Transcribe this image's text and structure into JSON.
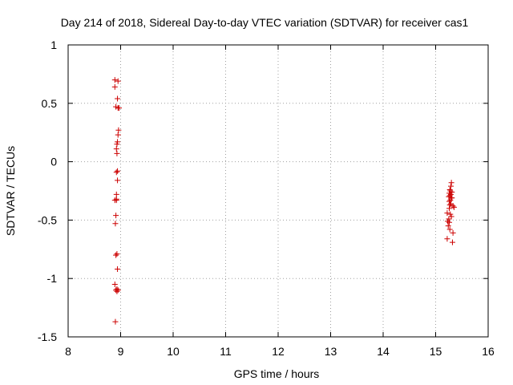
{
  "chart_data": {
    "type": "scatter",
    "title": "Day 214 of 2018, Sidereal Day-to-day VTEC variation (SDTVAR) for receiver cas1",
    "xlabel": "GPS time / hours",
    "ylabel": "SDTVAR / TECUs",
    "xlim": [
      8,
      16
    ],
    "ylim": [
      -1.5,
      1
    ],
    "xticks": [
      8,
      9,
      10,
      11,
      12,
      13,
      14,
      15,
      16
    ],
    "xtick_labels": [
      "8",
      "9",
      "10",
      "11",
      "12",
      "13",
      "14",
      "15",
      "16"
    ],
    "yticks": [
      -1.5,
      -1,
      -0.5,
      0,
      0.5,
      1
    ],
    "ytick_labels": [
      "-1.5",
      "-1",
      "-0.5",
      "0",
      "0.5",
      "1"
    ],
    "grid": true,
    "marker": "+",
    "color": "#cc0000",
    "series": [
      {
        "x": [
          8.89,
          8.95,
          8.89,
          8.94,
          8.95,
          8.97,
          8.96,
          8.95,
          8.94,
          8.93,
          8.92,
          8.93,
          8.94,
          8.92,
          8.94,
          8.92,
          8.89,
          8.92,
          8.91,
          8.9,
          8.93,
          8.91,
          8.94,
          8.89,
          8.93,
          8.95,
          8.93,
          8.9,
          8.91,
          8.91,
          8.92
        ],
        "y": [
          0.7,
          0.69,
          0.64,
          0.54,
          0.46,
          0.46,
          0.27,
          0.23,
          0.17,
          0.15,
          0.11,
          0.07,
          -0.08,
          -0.09,
          -0.16,
          -0.28,
          -0.33,
          -0.32,
          -0.46,
          -0.53,
          -0.79,
          -0.8,
          -0.92,
          -1.05,
          -1.09,
          -1.1,
          -1.11,
          -1.37,
          -1.1,
          0.47,
          -0.33
        ]
      },
      {
        "x": [
          15.3,
          15.29,
          15.27,
          15.28,
          15.31,
          15.26,
          15.29,
          15.27,
          15.25,
          15.3,
          15.28,
          15.26,
          15.33,
          15.35,
          15.27,
          15.22,
          15.28,
          15.3,
          15.25,
          15.23,
          15.26,
          15.24,
          15.27,
          15.33,
          15.22,
          15.32,
          15.29,
          15.26,
          15.31
        ],
        "y": [
          -0.18,
          -0.21,
          -0.24,
          -0.25,
          -0.26,
          -0.27,
          -0.28,
          -0.29,
          -0.3,
          -0.31,
          -0.33,
          -0.34,
          -0.38,
          -0.39,
          -0.37,
          -0.44,
          -0.45,
          -0.47,
          -0.49,
          -0.51,
          -0.52,
          -0.55,
          -0.58,
          -0.61,
          -0.66,
          -0.69,
          -0.36,
          -0.4,
          -0.31
        ]
      }
    ]
  }
}
